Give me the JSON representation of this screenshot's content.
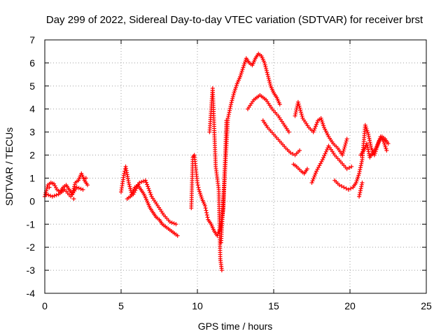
{
  "chart_data": {
    "type": "scatter",
    "title": "Day 299 of 2022, Sidereal Day-to-day VTEC variation (SDTVAR) for receiver brst",
    "xlabel": "GPS time / hours",
    "ylabel": "SDTVAR / TECUs",
    "xlim": [
      0,
      25
    ],
    "ylim": [
      -4,
      7
    ],
    "xticks": [
      "0",
      "5",
      "10",
      "15",
      "20",
      "25"
    ],
    "yticks": [
      "-4",
      "-3",
      "-2",
      "-1",
      "0",
      "1",
      "2",
      "3",
      "4",
      "5",
      "6",
      "7"
    ],
    "grid": true,
    "marker": "plus",
    "marker_color": "#ff0000",
    "series": [
      {
        "name": "brst",
        "x": [
          0.0,
          0.2,
          0.4,
          0.6,
          0.8,
          1.0,
          1.2,
          1.4,
          1.6,
          1.8,
          2.0,
          2.2,
          2.4,
          2.6,
          2.8,
          0.1,
          0.5,
          0.9,
          1.3,
          1.7,
          2.1,
          2.5,
          0.3,
          1.1,
          1.9,
          2.7,
          5.0,
          5.2,
          5.3,
          5.5,
          5.7,
          5.9,
          6.1,
          6.3,
          6.5,
          6.7,
          6.9,
          7.1,
          7.3,
          7.5,
          7.7,
          7.9,
          8.1,
          8.3,
          8.5,
          8.7,
          5.4,
          5.8,
          6.2,
          6.6,
          7.0,
          7.4,
          7.8,
          8.2,
          8.6,
          9.6,
          9.7,
          9.8,
          10.0,
          10.1,
          10.3,
          10.5,
          10.6,
          10.7,
          10.9,
          11.1,
          11.3,
          11.5,
          11.6,
          11.7,
          11.8,
          11.9,
          10.8,
          11.0,
          11.2,
          11.4,
          11.5,
          11.6,
          11.55,
          12.0,
          12.2,
          12.4,
          12.6,
          12.8,
          13.0,
          13.2,
          13.4,
          13.6,
          13.8,
          14.0,
          14.2,
          14.4,
          14.6,
          14.8,
          15.0,
          15.2,
          15.4,
          13.3,
          13.7,
          14.1,
          14.5,
          14.9,
          15.3,
          15.7,
          16.0,
          14.3,
          14.6,
          15.0,
          15.4,
          15.8,
          16.1,
          16.4,
          16.7,
          16.3,
          16.5,
          16.8,
          17.0,
          17.2,
          16.4,
          16.6,
          16.9,
          17.3,
          17.6,
          17.9,
          18.1,
          18.3,
          18.6,
          18.9,
          19.2,
          19.5,
          19.8,
          17.5,
          17.8,
          18.2,
          18.6,
          19.0,
          19.4,
          19.8,
          20.1,
          19.0,
          19.3,
          19.6,
          19.9,
          20.2,
          20.4,
          20.6,
          20.8,
          21.0,
          21.2,
          21.4,
          21.6,
          21.8,
          22.0,
          22.2,
          22.4,
          20.7,
          20.9,
          21.1,
          21.3,
          21.5,
          21.7,
          21.9,
          22.1,
          22.3,
          22.5,
          20.6,
          20.8
        ],
        "y": [
          0.2,
          0.7,
          0.8,
          0.75,
          0.5,
          0.4,
          0.6,
          0.7,
          0.5,
          0.3,
          0.8,
          0.9,
          1.2,
          0.9,
          0.7,
          0.3,
          0.2,
          0.3,
          0.5,
          0.2,
          0.6,
          0.5,
          0.6,
          0.4,
          0.1,
          1.0,
          0.4,
          1.2,
          1.5,
          0.8,
          0.3,
          0.6,
          0.7,
          0.5,
          0.3,
          0.0,
          -0.3,
          -0.5,
          -0.7,
          -0.8,
          -1.0,
          -1.1,
          -1.2,
          -1.3,
          -1.4,
          -1.5,
          0.1,
          0.3,
          0.8,
          0.9,
          0.2,
          -0.2,
          -0.6,
          -0.9,
          -1.0,
          -0.3,
          1.9,
          2.0,
          0.8,
          0.5,
          0.1,
          -0.2,
          -0.5,
          -0.8,
          -1.0,
          -1.3,
          -1.5,
          -1.2,
          -0.8,
          -0.3,
          1.5,
          3.5,
          3.0,
          4.9,
          1.5,
          0.5,
          -2.5,
          -3.0,
          -1.8,
          3.6,
          4.2,
          4.7,
          5.1,
          5.4,
          5.8,
          6.2,
          6.0,
          5.9,
          6.2,
          6.4,
          6.3,
          6.0,
          5.5,
          5.0,
          4.7,
          4.5,
          4.2,
          4.0,
          4.4,
          4.6,
          4.4,
          4.0,
          3.7,
          3.3,
          3.0,
          3.5,
          3.2,
          2.9,
          2.6,
          2.3,
          2.1,
          2.0,
          2.2,
          1.6,
          1.5,
          1.3,
          1.2,
          1.4,
          3.7,
          4.3,
          3.6,
          3.2,
          3.0,
          3.5,
          3.6,
          3.2,
          2.8,
          2.5,
          2.3,
          2.0,
          2.7,
          0.8,
          1.3,
          1.8,
          2.4,
          2.0,
          1.7,
          1.4,
          1.5,
          0.9,
          0.7,
          0.6,
          0.5,
          0.6,
          0.8,
          1.2,
          1.8,
          3.3,
          2.9,
          2.3,
          2.0,
          2.4,
          2.8,
          2.6,
          2.2,
          2.0,
          2.2,
          2.5,
          1.9,
          2.1,
          2.3,
          2.6,
          2.8,
          2.7,
          2.5,
          0.2,
          0.8
        ]
      }
    ]
  }
}
